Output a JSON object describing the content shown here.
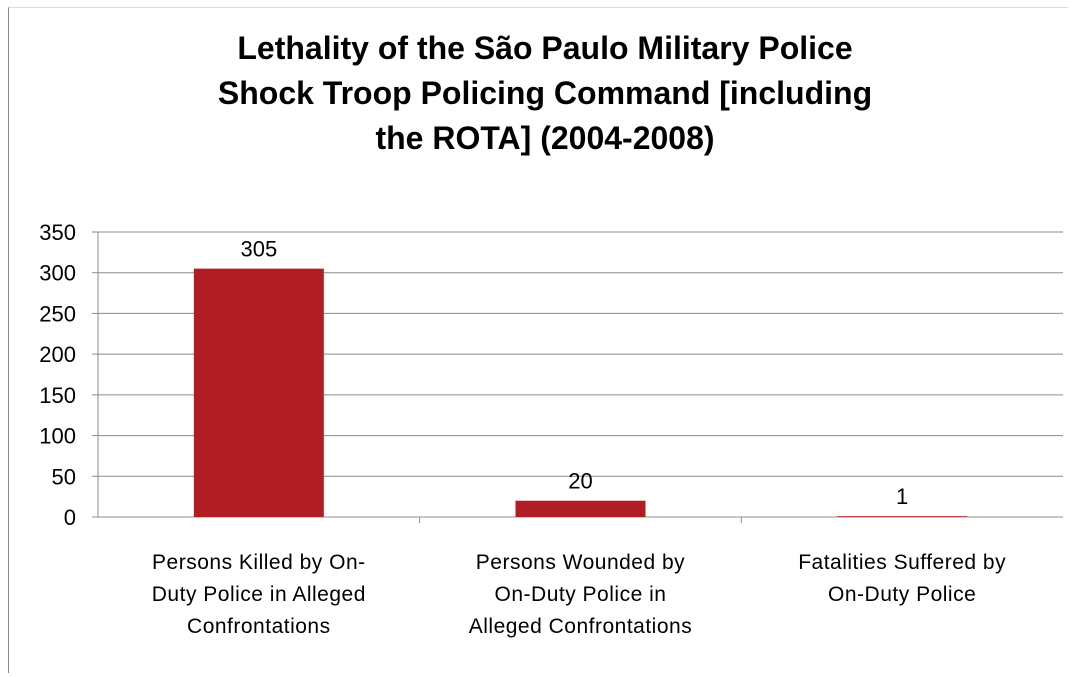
{
  "chart_data": {
    "type": "bar",
    "title_lines": [
      "Lethality of the São Paulo Military Police",
      "Shock Troop Policing Command [including",
      "the ROTA] (2004-2008)"
    ],
    "categories": [
      [
        "Persons Killed by On-",
        "Duty Police in Alleged",
        "Confrontations"
      ],
      [
        "Persons Wounded by",
        "On-Duty Police in",
        "Alleged Confrontations"
      ],
      [
        "Fatalities Suffered by",
        "On-Duty Police"
      ]
    ],
    "values": [
      305,
      20,
      1
    ],
    "data_labels": [
      "305",
      "20",
      "1"
    ],
    "ylim": [
      0,
      350
    ],
    "yticks": [
      0,
      50,
      100,
      150,
      200,
      250,
      300,
      350
    ],
    "grid": true,
    "legend": "none",
    "bar_color": "#b01e23",
    "grid_color": "#8c8c8c"
  }
}
